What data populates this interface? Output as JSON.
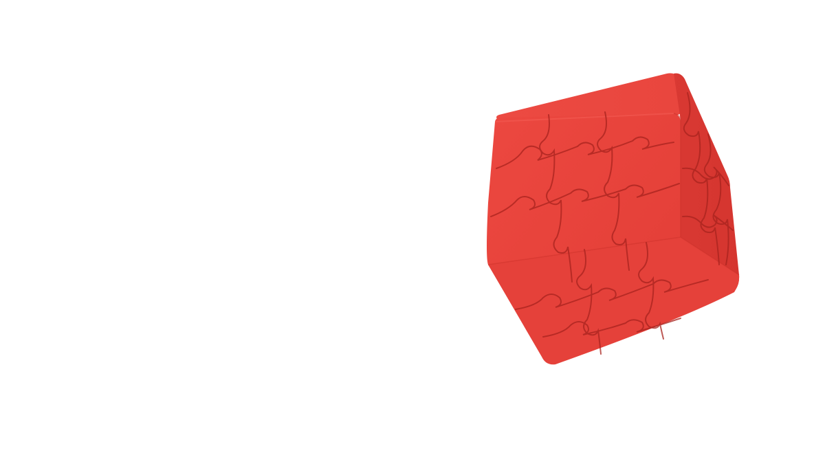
{
  "scene": {
    "subject": "puzzle-cube",
    "colors": {
      "background": "#ffffff",
      "cube_front": "#e8433c",
      "cube_top": "#ea4b43",
      "cube_side": "#d83a33",
      "seam": "#a8231e",
      "edge_highlight": "#f25a52"
    }
  }
}
